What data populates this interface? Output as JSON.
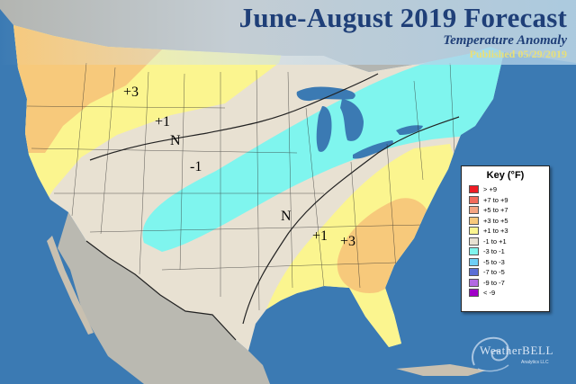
{
  "header": {
    "title": "June-August 2019 Forecast",
    "subtitle": "Temperature Anomaly",
    "published": "Published 05/29/2019"
  },
  "anomaly_labels": {
    "nw_plus3": "+3",
    "north_plus1": "+1",
    "north_N": "N",
    "central_minus1": "-1",
    "south_N": "N",
    "se_plus1": "+1",
    "se_plus3": "+3"
  },
  "key": {
    "title": "Key (°F)",
    "items": [
      {
        "label": "> +9",
        "color": "#ee1c24"
      },
      {
        "label": "+7 to +9",
        "color": "#f26b5b"
      },
      {
        "label": "+5 to +7",
        "color": "#f4a582"
      },
      {
        "label": "+3 to +5",
        "color": "#f7c97b"
      },
      {
        "label": "+1 to +3",
        "color": "#fbf58f"
      },
      {
        "label": "-1 to +1",
        "color": "#e8e1d2"
      },
      {
        "label": "-3 to -1",
        "color": "#7ff5ee"
      },
      {
        "label": "-5 to -3",
        "color": "#6ecff6"
      },
      {
        "label": "-7 to -5",
        "color": "#5b6fd6"
      },
      {
        "label": "-9 to -7",
        "color": "#b36ae2"
      },
      {
        "label": "< -9",
        "color": "#a000c8"
      }
    ]
  },
  "logo": {
    "name": "WeatherBELL",
    "sub": "Analytics LLC"
  },
  "colors": {
    "ocean": "#3b7ab3",
    "land_neutral": "#e8e1d2",
    "warm_1_3": "#fbf58f",
    "warm_3_5": "#f7c97b",
    "cool_1_3": "#7ff5ee",
    "title": "#1f3f78",
    "published": "#e8e07a"
  }
}
